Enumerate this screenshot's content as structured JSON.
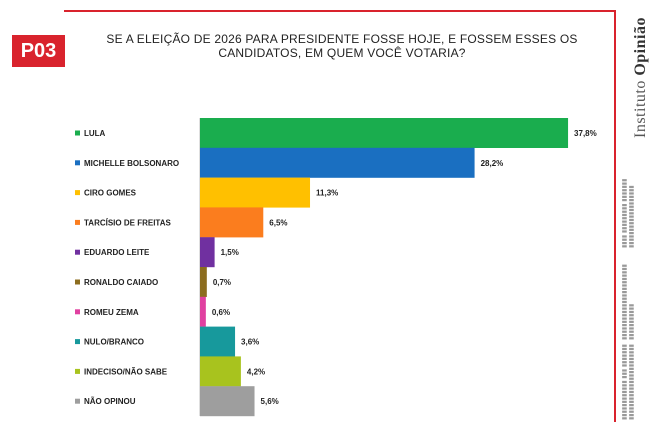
{
  "header": {
    "code": "P03",
    "question": "SE A ELEIÇÃO DE 2026 PARA PRESIDENTE FOSSE HOJE, E FOSSEM ESSES OS CANDIDATOS, EM QUEM VOCÊ VOTARIA?"
  },
  "brand": {
    "name_prefix": "Instituto ",
    "name_bold": "Opinião"
  },
  "chart_data": {
    "type": "bar",
    "orientation": "horizontal",
    "title": "SE A ELEIÇÃO DE 2026 PARA PRESIDENTE FOSSE HOJE, E FOSSEM ESSES OS CANDIDATOS, EM QUEM VOCÊ VOTARIA?",
    "categories": [
      "LULA",
      "MICHELLE BOLSONARO",
      "CIRO GOMES",
      "TARCÍSIO DE FREITAS",
      "EDUARDO LEITE",
      "RONALDO CAIADO",
      "ROMEU ZEMA",
      "NULO/BRANCO",
      "INDECISO/NÃO SABE",
      "NÃO OPINOU"
    ],
    "values": [
      37.8,
      28.2,
      11.3,
      6.5,
      1.5,
      0.7,
      0.6,
      3.6,
      4.2,
      5.6
    ],
    "value_labels": [
      "37,8%",
      "28,2%",
      "11,3%",
      "6,5%",
      "1,5%",
      "0,7%",
      "0,6%",
      "3,6%",
      "4,2%",
      "5,6%"
    ],
    "colors": [
      "#1aad4e",
      "#1a6fc1",
      "#ffc000",
      "#fb7d1e",
      "#7030a0",
      "#8c6d1f",
      "#e040a0",
      "#17999c",
      "#a8c31e",
      "#9e9e9e"
    ],
    "xlim": [
      0,
      38
    ],
    "grid": false,
    "legend": "none"
  }
}
